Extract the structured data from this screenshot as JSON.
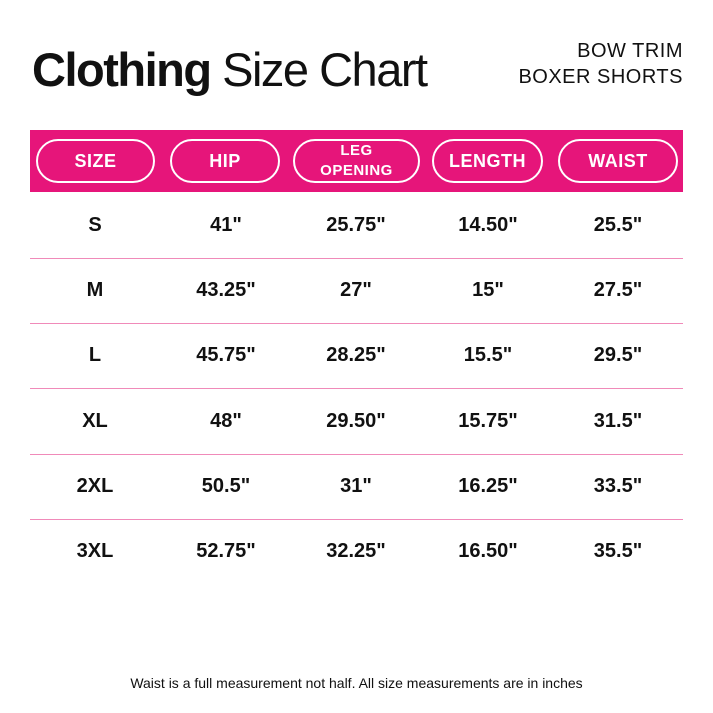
{
  "header": {
    "title_bold": "Clothing",
    "title_regular": "Size Chart",
    "product_line1": "BOW TRIM",
    "product_line2": "BOXER SHORTS"
  },
  "table": {
    "columns": [
      "SIZE",
      "HIP",
      "LEG OPENING",
      "LENGTH",
      "WAIST"
    ],
    "rows": [
      [
        "S",
        "41\"",
        "25.75\"",
        "14.50\"",
        "25.5\""
      ],
      [
        "M",
        "43.25\"",
        "27\"",
        "15\"",
        "27.5\""
      ],
      [
        "L",
        "45.75\"",
        "28.25\"",
        "15.5\"",
        "29.5\""
      ],
      [
        "XL",
        "48\"",
        "29.50\"",
        "15.75\"",
        "31.5\""
      ],
      [
        "2XL",
        "50.5\"",
        "31\"",
        "16.25\"",
        "33.5\""
      ],
      [
        "3XL",
        "52.75\"",
        "32.25\"",
        "16.50\"",
        "35.5\""
      ]
    ]
  },
  "footer": {
    "note": "Waist is a full measurement not half. All size measurements are in inches"
  }
}
